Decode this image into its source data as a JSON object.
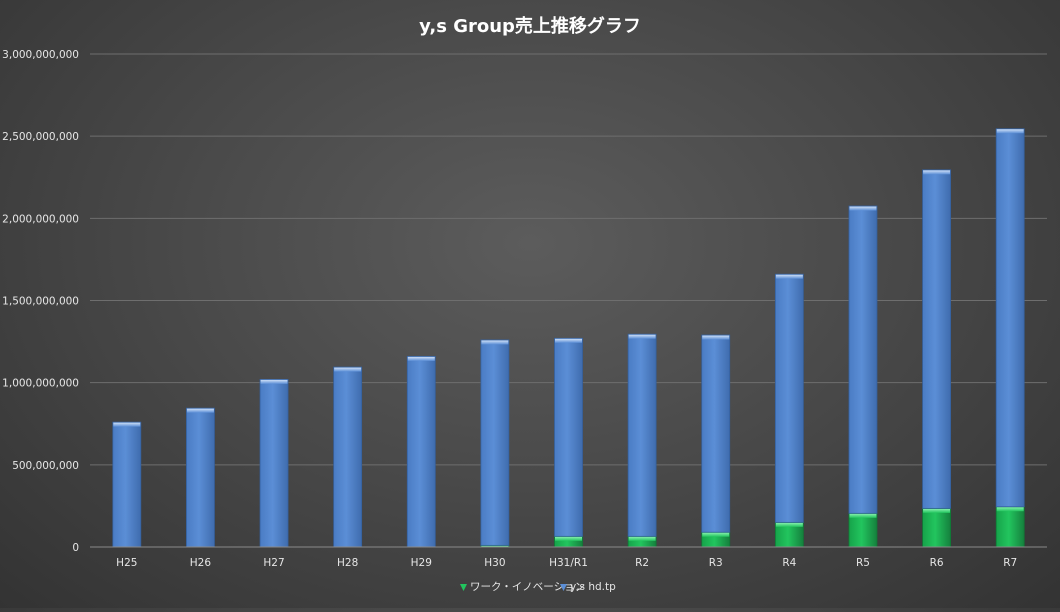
{
  "chart_data": {
    "type": "bar",
    "stacked": true,
    "title": "y,s Group売上推移グラフ",
    "xlabel": "",
    "ylabel": "",
    "categories": [
      "H25",
      "H26",
      "H27",
      "H28",
      "H29",
      "H30",
      "H31/R1",
      "R2",
      "R3",
      "R4",
      "R5",
      "R6",
      "R7"
    ],
    "series": [
      {
        "name": "ワーク・イノベーション",
        "color": "#22c55e",
        "values": [
          0,
          0,
          0,
          0,
          0,
          10000000,
          65000000,
          65000000,
          90000000,
          150000000,
          205000000,
          235000000,
          245000000
        ]
      },
      {
        "name": "y,s hd.tp",
        "color": "#5b8ed6",
        "values": [
          760000000,
          845000000,
          1020000000,
          1095000000,
          1160000000,
          1250000000,
          1205000000,
          1230000000,
          1200000000,
          1510000000,
          1870000000,
          2060000000,
          2300000000
        ]
      }
    ],
    "ylim": [
      0,
      3000000000
    ],
    "yticks": [
      0,
      500000000,
      1000000000,
      1500000000,
      2000000000,
      2500000000,
      3000000000
    ],
    "ytick_labels": [
      "0",
      "500,000,000",
      "1,000,000,000",
      "1,500,000,000",
      "2,000,000,000",
      "2,500,000,000",
      "3,000,000,000"
    ],
    "grid": true,
    "legend_position": "bottom"
  }
}
